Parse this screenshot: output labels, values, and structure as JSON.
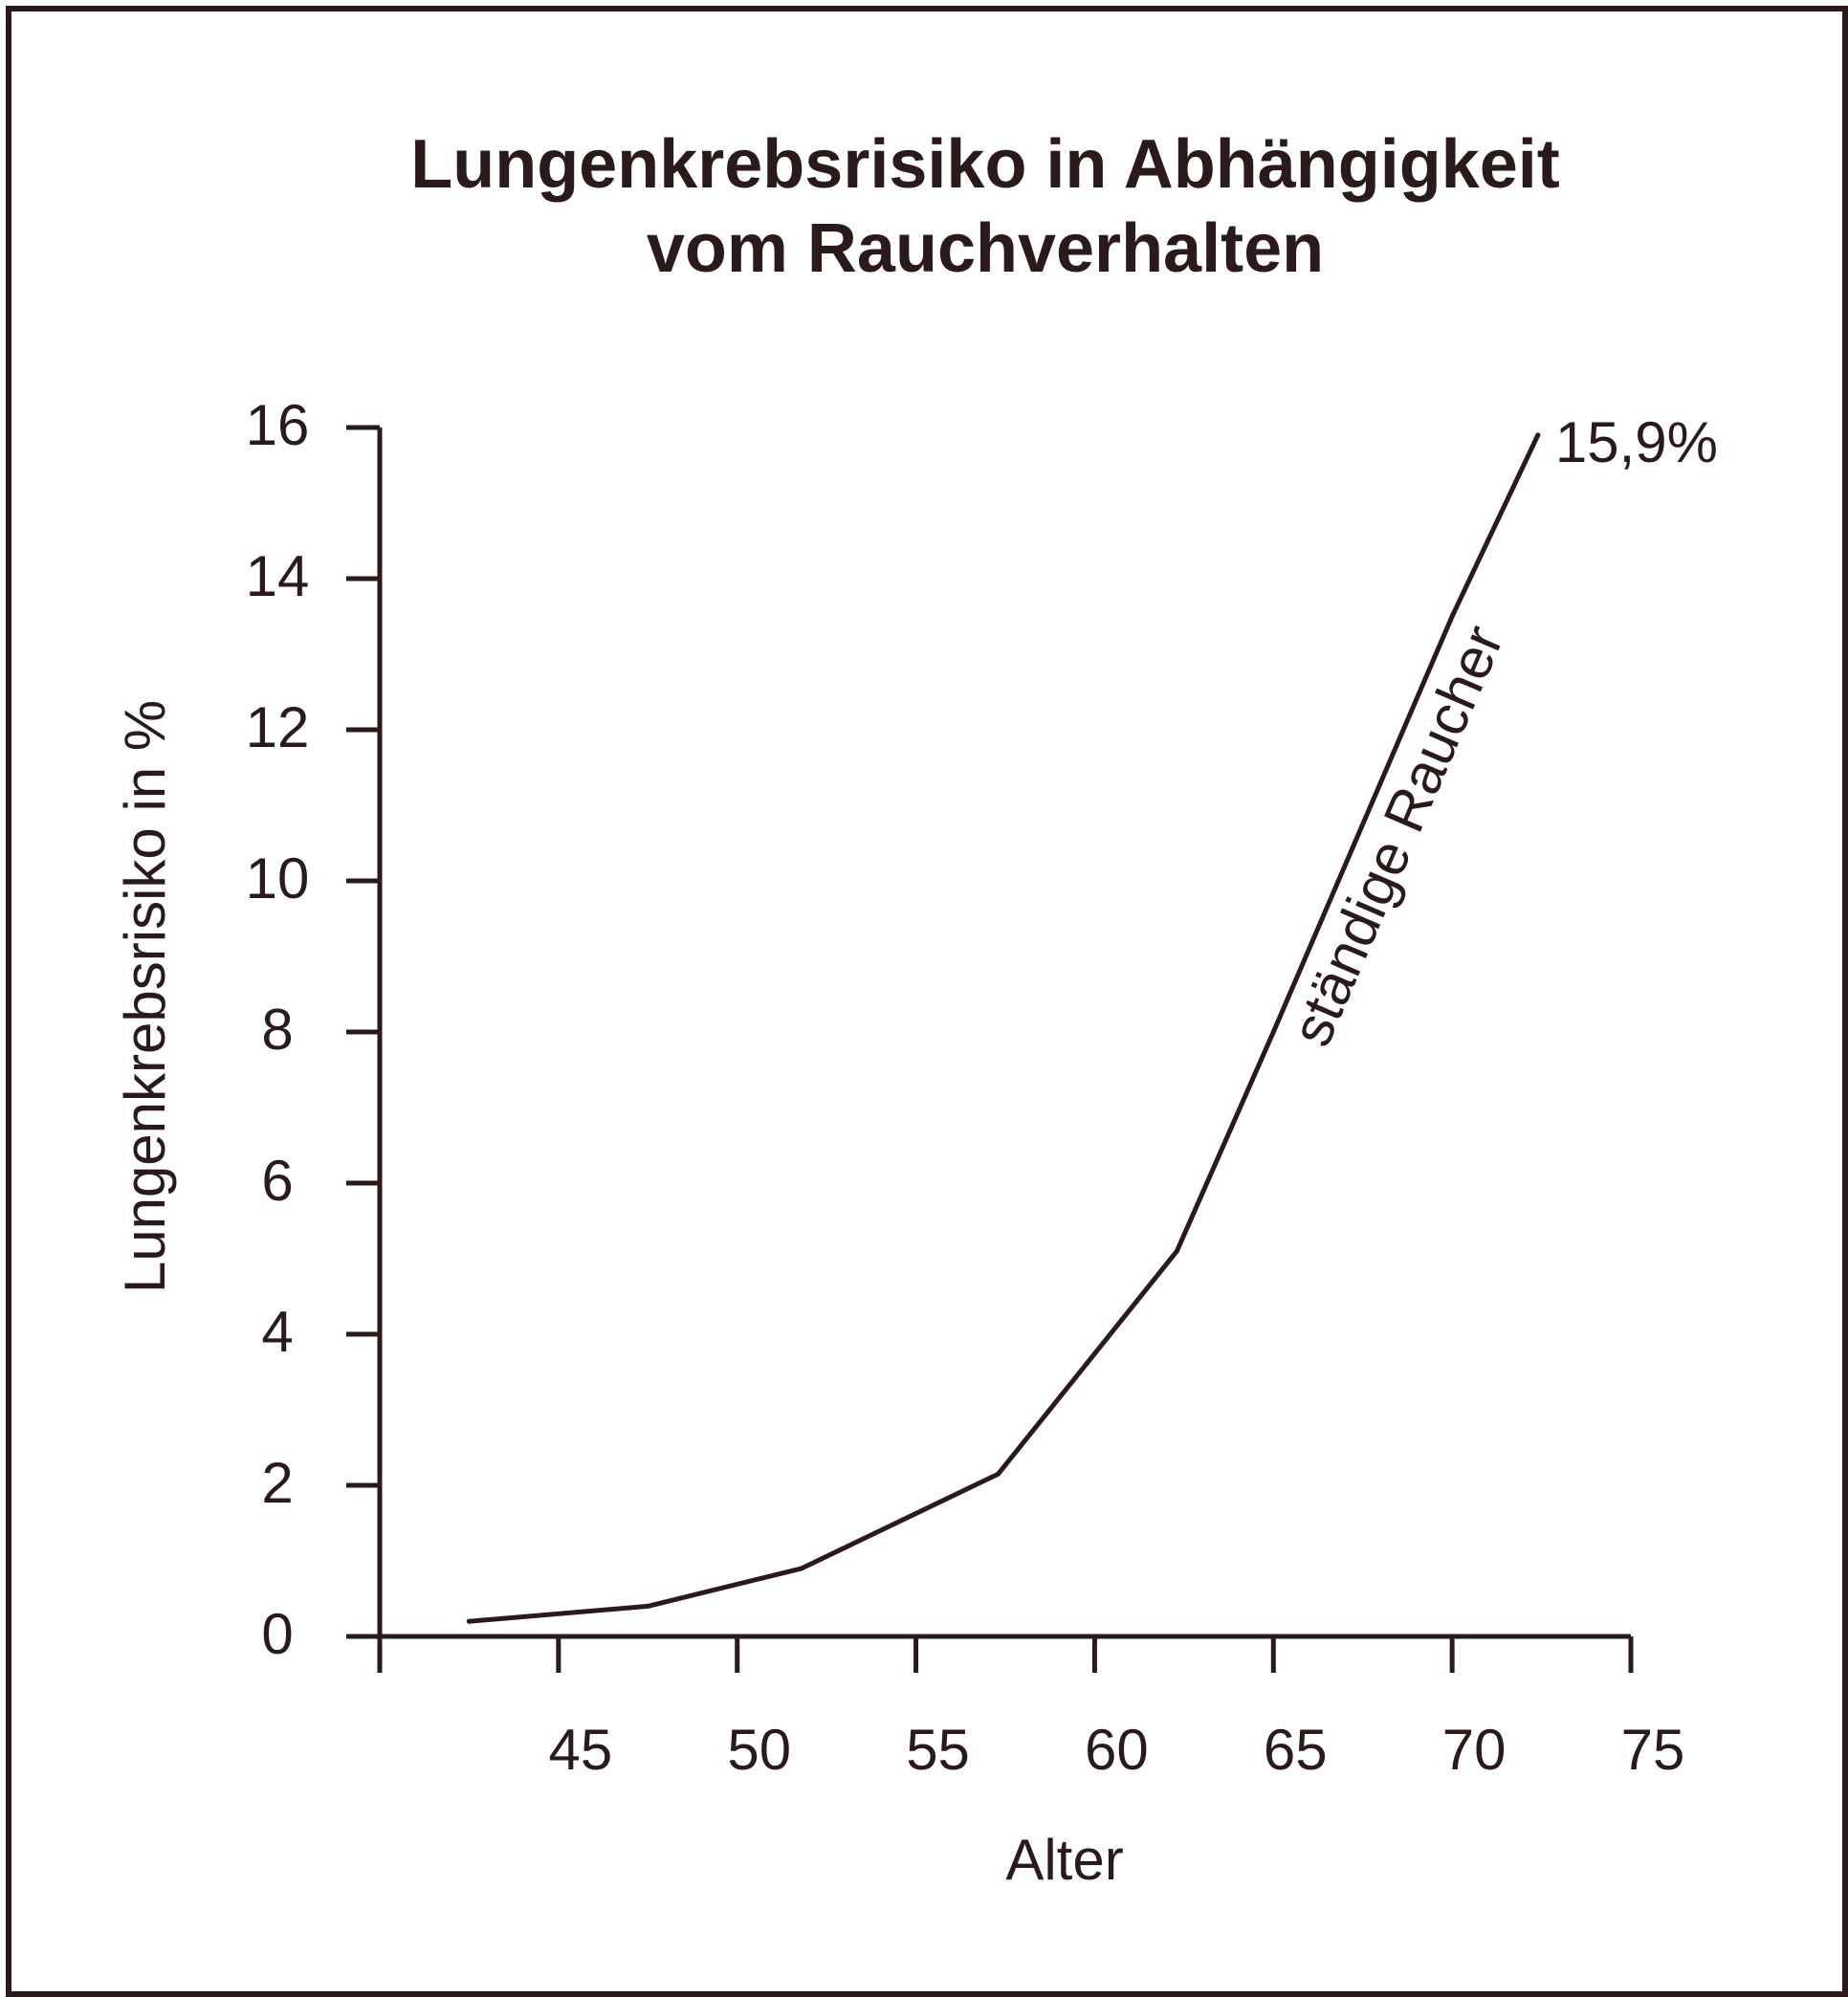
{
  "chart_data": {
    "type": "line",
    "title_lines": [
      "Lungenkrebsrisiko in Abhängigkeit",
      "vom Rauchverhalten"
    ],
    "xlabel": "Alter",
    "ylabel": "Lungenkrebsrisiko in %",
    "x_ticks": [
      45,
      50,
      55,
      60,
      65,
      70,
      75
    ],
    "y_ticks": [
      0,
      2,
      4,
      6,
      8,
      10,
      12,
      14,
      16
    ],
    "xlim": [
      40,
      75
    ],
    "ylim": [
      0,
      16
    ],
    "grid": false,
    "series": [
      {
        "name": "ständige Raucher",
        "x": [
          42.5,
          47.5,
          51.8,
          57.3,
          62.3,
          65.0,
          70.0,
          72.4
        ],
        "values": [
          0.2,
          0.4,
          0.9,
          2.15,
          5.1,
          8.0,
          13.5,
          15.9
        ]
      }
    ],
    "annotations": [
      {
        "text": "15,9%",
        "x": 72.4,
        "y": 15.9
      }
    ],
    "colors": {
      "ink": "#2b1a1c"
    }
  }
}
